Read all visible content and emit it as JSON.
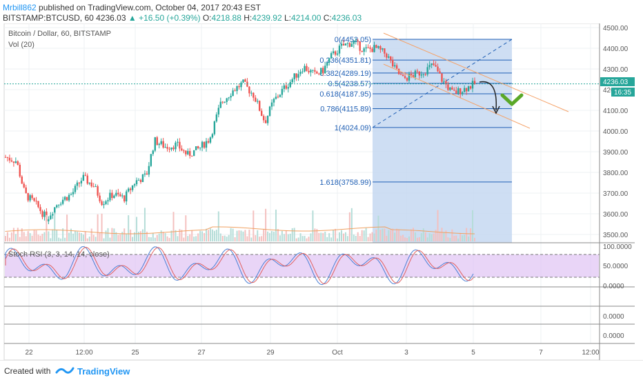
{
  "header": {
    "author": "Mrbill862",
    "published": " published on TradingView.com, October 04, 2017 20:43 EST",
    "symbol": "BITSTAMP:BTCUSD, 60",
    "last": "4236.03",
    "change": "▲ +16.50 (+0.39%)",
    "open_label": "O:",
    "open": "4218.88",
    "high_label": "H:",
    "high": "4239.92",
    "low_label": "L:",
    "low": "4214.00",
    "close_label": "C:",
    "close": "4236.03"
  },
  "main_pane": {
    "title": "Bitcoin / Dollar, 60, BITSTAMP",
    "volume_label": "Vol (20)",
    "price_tag": "4236.03",
    "time_tag": "16:35"
  },
  "stoch_pane": {
    "title": "Stoch RSI (3, 3, 14, 14, close)"
  },
  "footer": {
    "created_with": "Created with",
    "brand": "TradingView"
  },
  "colors": {
    "up": "#26a69a",
    "down": "#ef5350",
    "fib_fill": "#c5d8f1",
    "fib_line": "#1f5fb4",
    "channel": "#f5a36a",
    "stoch_band": "#e0c3f3",
    "arrow_green": "#5aa828"
  },
  "chart_data": {
    "type": "candlestick",
    "y_axis_ticks": [
      "4500.00",
      "4400.00",
      "4300.00",
      "4200.00",
      "4100.00",
      "4000.00",
      "3900.00",
      "3800.00",
      "3700.00",
      "3600.00",
      "3500.00"
    ],
    "ylim": [
      3470,
      4510
    ],
    "x_axis_ticks": [
      "22",
      "12:00",
      "25",
      "27",
      "29",
      "Oct",
      "3",
      "5",
      "7",
      "12:00"
    ],
    "fib_levels": [
      {
        "label": "0(4453.05)",
        "value": 4453.05
      },
      {
        "label": "0.236(4351.81)",
        "value": 4351.81
      },
      {
        "label": "0.382(4289.19)",
        "value": 4289.19
      },
      {
        "label": "0.5(4238.57)",
        "value": 4238.57
      },
      {
        "label": "0.618(4187.95)",
        "value": 4187.95
      },
      {
        "label": "0.786(4115.89)",
        "value": 4115.89
      },
      {
        "label": "1(4024.09)",
        "value": 4024.09
      },
      {
        "label": "1.618(3758.99)",
        "value": 3758.99
      }
    ],
    "price_path": [
      {
        "t": 0,
        "p": 3880
      },
      {
        "t": 0.02,
        "p": 3860
      },
      {
        "t": 0.035,
        "p": 3700
      },
      {
        "t": 0.055,
        "p": 3650
      },
      {
        "t": 0.075,
        "p": 3580
      },
      {
        "t": 0.095,
        "p": 3660
      },
      {
        "t": 0.12,
        "p": 3700
      },
      {
        "t": 0.14,
        "p": 3780
      },
      {
        "t": 0.16,
        "p": 3740
      },
      {
        "t": 0.175,
        "p": 3660
      },
      {
        "t": 0.195,
        "p": 3700
      },
      {
        "t": 0.215,
        "p": 3680
      },
      {
        "t": 0.235,
        "p": 3760
      },
      {
        "t": 0.255,
        "p": 3790
      },
      {
        "t": 0.27,
        "p": 3960
      },
      {
        "t": 0.29,
        "p": 3930
      },
      {
        "t": 0.31,
        "p": 3940
      },
      {
        "t": 0.33,
        "p": 3890
      },
      {
        "t": 0.35,
        "p": 3920
      },
      {
        "t": 0.37,
        "p": 3970
      },
      {
        "t": 0.39,
        "p": 4140
      },
      {
        "t": 0.41,
        "p": 4200
      },
      {
        "t": 0.43,
        "p": 4240
      },
      {
        "t": 0.45,
        "p": 4180
      },
      {
        "t": 0.47,
        "p": 4050
      },
      {
        "t": 0.485,
        "p": 4150
      },
      {
        "t": 0.5,
        "p": 4200
      },
      {
        "t": 0.52,
        "p": 4260
      },
      {
        "t": 0.54,
        "p": 4320
      },
      {
        "t": 0.56,
        "p": 4280
      },
      {
        "t": 0.575,
        "p": 4300
      },
      {
        "t": 0.59,
        "p": 4370
      },
      {
        "t": 0.61,
        "p": 4420
      },
      {
        "t": 0.63,
        "p": 4440
      },
      {
        "t": 0.65,
        "p": 4400
      },
      {
        "t": 0.67,
        "p": 4410
      },
      {
        "t": 0.69,
        "p": 4380
      },
      {
        "t": 0.705,
        "p": 4310
      },
      {
        "t": 0.72,
        "p": 4260
      },
      {
        "t": 0.74,
        "p": 4280
      },
      {
        "t": 0.76,
        "p": 4300
      },
      {
        "t": 0.775,
        "p": 4330
      },
      {
        "t": 0.79,
        "p": 4260
      },
      {
        "t": 0.81,
        "p": 4190
      },
      {
        "t": 0.83,
        "p": 4210
      },
      {
        "t": 0.85,
        "p": 4236
      }
    ],
    "stoch_ticks": [
      "100.0000",
      "50.0000",
      "0.0000"
    ],
    "lower_pane_ticks": [
      "0.0000",
      "0.0000"
    ]
  }
}
